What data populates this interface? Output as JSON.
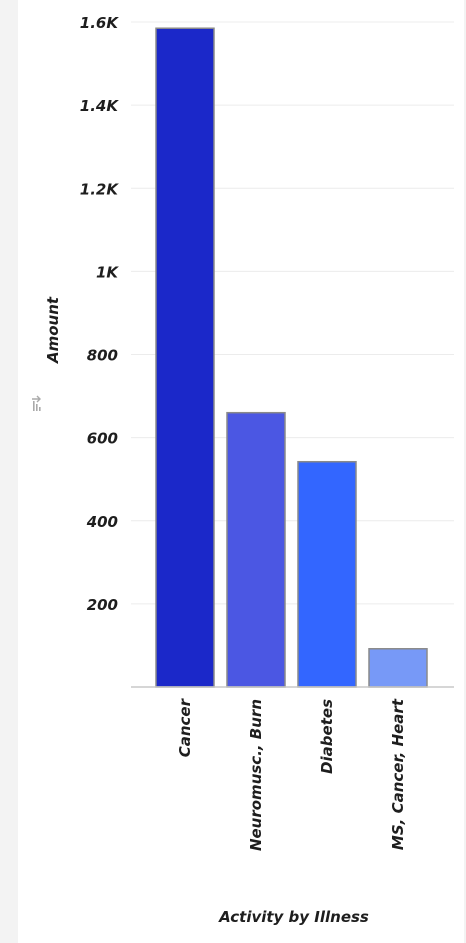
{
  "chart_data": {
    "type": "bar",
    "categories": [
      "Cancer",
      "Neuromusc., Burn",
      "Diabetes",
      "MS, Cancer, Heart"
    ],
    "values": [
      1585,
      660,
      542,
      92
    ],
    "colors": [
      "#1b28c9",
      "#4b57e3",
      "#3366ff",
      "#7799f7"
    ],
    "xlabel": "Activity by Illness",
    "ylabel": "Amount",
    "ylim": [
      0,
      1600
    ],
    "yticks": [
      {
        "value": 200,
        "label": "200"
      },
      {
        "value": 400,
        "label": "400"
      },
      {
        "value": 600,
        "label": "600"
      },
      {
        "value": 800,
        "label": "800"
      },
      {
        "value": 1000,
        "label": "1K"
      },
      {
        "value": 1200,
        "label": "1.2K"
      },
      {
        "value": 1400,
        "label": "1.4K"
      },
      {
        "value": 1600,
        "label": "1.6K"
      }
    ],
    "grid": true,
    "axis_icon": "sort-icon"
  }
}
